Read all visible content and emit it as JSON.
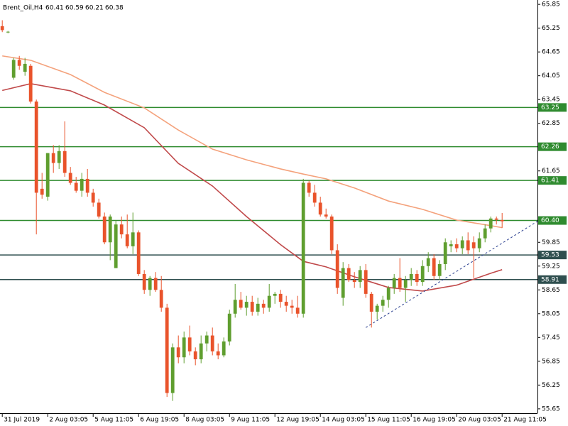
{
  "chart_data": {
    "type": "candlestick",
    "title": "Brent_Oil,H4",
    "header_values": [
      60.41,
      60.59,
      60.21,
      60.38
    ],
    "up_color": "#5f9e2f",
    "down_color": "#e9532b",
    "ohlc": [
      [
        65.3,
        65.45,
        65.15,
        65.2
      ],
      [
        65.15,
        65.18,
        65.12,
        65.16
      ],
      [
        64.0,
        64.5,
        63.95,
        64.45
      ],
      [
        64.45,
        64.55,
        64.2,
        64.3
      ],
      [
        64.15,
        64.5,
        64.05,
        64.35
      ],
      [
        64.3,
        64.35,
        63.35,
        63.4
      ],
      [
        63.4,
        63.45,
        60.05,
        61.1
      ],
      [
        61.2,
        61.6,
        60.95,
        61.05
      ],
      [
        61.0,
        62.1,
        60.9,
        62.1
      ],
      [
        62.1,
        62.3,
        61.6,
        61.85
      ],
      [
        61.85,
        62.3,
        61.7,
        62.15
      ],
      [
        62.15,
        62.9,
        61.5,
        61.6
      ],
      [
        61.6,
        61.75,
        61.3,
        61.35
      ],
      [
        61.35,
        61.5,
        61.1,
        61.15
      ],
      [
        61.15,
        61.6,
        61.0,
        61.45
      ],
      [
        61.45,
        61.7,
        61.0,
        61.1
      ],
      [
        61.1,
        61.2,
        60.75,
        60.85
      ],
      [
        60.85,
        60.95,
        60.45,
        60.5
      ],
      [
        60.5,
        60.6,
        59.8,
        59.85
      ],
      [
        59.85,
        60.55,
        59.4,
        60.5
      ],
      [
        59.2,
        60.4,
        59.2,
        60.3
      ],
      [
        60.3,
        60.5,
        59.95,
        60.05
      ],
      [
        60.05,
        60.55,
        59.7,
        59.75
      ],
      [
        59.75,
        60.6,
        59.55,
        60.1
      ],
      [
        60.1,
        60.15,
        59.0,
        59.05
      ],
      [
        59.05,
        59.15,
        58.55,
        58.65
      ],
      [
        58.65,
        59.0,
        58.5,
        58.95
      ],
      [
        58.95,
        59.1,
        58.6,
        58.65
      ],
      [
        58.65,
        59.0,
        58.1,
        58.2
      ],
      [
        58.2,
        58.3,
        55.95,
        56.05
      ],
      [
        56.05,
        57.3,
        55.85,
        57.2
      ],
      [
        57.2,
        57.5,
        56.8,
        56.95
      ],
      [
        56.95,
        57.6,
        56.8,
        57.45
      ],
      [
        57.45,
        57.75,
        57.0,
        57.1
      ],
      [
        57.1,
        57.2,
        56.75,
        56.9
      ],
      [
        56.9,
        57.5,
        56.8,
        57.3
      ],
      [
        57.3,
        57.6,
        57.1,
        57.5
      ],
      [
        57.5,
        57.7,
        57.0,
        57.1
      ],
      [
        57.1,
        57.3,
        56.9,
        57.0
      ],
      [
        57.0,
        57.45,
        56.95,
        57.35
      ],
      [
        57.35,
        58.15,
        57.25,
        58.05
      ],
      [
        58.05,
        58.8,
        57.95,
        58.4
      ],
      [
        58.4,
        58.6,
        58.15,
        58.2
      ],
      [
        58.2,
        58.5,
        58.0,
        58.35
      ],
      [
        58.35,
        58.5,
        58.0,
        58.1
      ],
      [
        58.1,
        58.45,
        58.0,
        58.3
      ],
      [
        58.3,
        58.4,
        58.05,
        58.2
      ],
      [
        58.2,
        58.8,
        58.1,
        58.5
      ],
      [
        58.5,
        58.6,
        58.3,
        58.55
      ],
      [
        58.55,
        58.65,
        58.2,
        58.35
      ],
      [
        58.35,
        58.5,
        58.1,
        58.25
      ],
      [
        58.25,
        58.4,
        58.05,
        58.2
      ],
      [
        58.2,
        58.5,
        57.95,
        58.05
      ],
      [
        58.05,
        61.45,
        57.95,
        61.35
      ],
      [
        61.35,
        61.4,
        61.0,
        61.1
      ],
      [
        61.1,
        61.3,
        60.75,
        60.85
      ],
      [
        60.85,
        61.0,
        60.5,
        60.55
      ],
      [
        60.55,
        60.7,
        60.45,
        60.5
      ],
      [
        60.5,
        60.55,
        59.55,
        59.65
      ],
      [
        59.65,
        59.8,
        58.55,
        58.7
      ],
      [
        58.45,
        59.35,
        58.25,
        59.2
      ],
      [
        59.2,
        59.3,
        58.85,
        58.9
      ],
      [
        58.9,
        59.1,
        58.7,
        58.85
      ],
      [
        58.85,
        59.25,
        58.7,
        59.15
      ],
      [
        59.15,
        59.3,
        58.45,
        58.55
      ],
      [
        58.55,
        58.6,
        57.7,
        58.1
      ],
      [
        58.1,
        58.3,
        57.9,
        58.25
      ],
      [
        58.25,
        58.5,
        58.1,
        58.4
      ],
      [
        58.4,
        58.75,
        58.2,
        58.7
      ],
      [
        58.7,
        59.05,
        58.55,
        58.95
      ],
      [
        58.95,
        59.45,
        58.6,
        58.7
      ],
      [
        58.7,
        59.0,
        58.35,
        58.9
      ],
      [
        58.9,
        59.2,
        58.75,
        59.05
      ],
      [
        59.05,
        59.15,
        58.75,
        58.85
      ],
      [
        58.85,
        59.4,
        58.75,
        59.25
      ],
      [
        59.25,
        59.6,
        59.1,
        59.45
      ],
      [
        59.45,
        59.55,
        58.9,
        59.0
      ],
      [
        59.0,
        59.4,
        58.9,
        59.3
      ],
      [
        59.3,
        59.95,
        59.15,
        59.85
      ],
      [
        59.75,
        59.9,
        59.6,
        59.8
      ],
      [
        59.8,
        59.95,
        59.6,
        59.7
      ],
      [
        59.7,
        60.0,
        59.55,
        59.9
      ],
      [
        59.9,
        60.1,
        59.55,
        59.65
      ],
      [
        59.85,
        60.0,
        58.95,
        59.7
      ],
      [
        59.7,
        60.1,
        59.6,
        59.95
      ],
      [
        59.95,
        60.3,
        59.85,
        60.2
      ],
      [
        60.2,
        60.5,
        60.1,
        60.45
      ],
      [
        60.45,
        60.5,
        60.3,
        60.42
      ],
      [
        60.41,
        60.59,
        60.21,
        60.38
      ]
    ],
    "ma_lines": [
      {
        "color": "#f4a27c",
        "x": [
          0,
          5,
          12,
          18,
          25,
          31,
          37,
          43,
          49,
          53,
          57,
          62,
          68,
          74,
          80,
          86,
          88
        ],
        "values": [
          64.55,
          64.44,
          64.08,
          63.63,
          63.24,
          62.68,
          62.2,
          61.93,
          61.7,
          61.57,
          61.45,
          61.22,
          60.89,
          60.68,
          60.41,
          60.27,
          60.22
        ]
      },
      {
        "color": "#c0494a",
        "x": [
          0,
          5,
          12,
          18,
          25,
          31,
          37,
          43,
          49,
          53,
          57,
          62,
          68,
          74,
          80,
          86,
          88
        ],
        "values": [
          63.68,
          63.85,
          63.67,
          63.31,
          62.74,
          61.84,
          61.27,
          60.5,
          59.79,
          59.37,
          59.23,
          58.98,
          58.71,
          58.62,
          58.77,
          59.07,
          59.16
        ]
      }
    ],
    "trendline": {
      "color": "#2a3f8f",
      "x": [
        64,
        94.225
      ],
      "values": [
        57.7,
        60.38
      ]
    },
    "levels": [
      {
        "value": 63.25,
        "color": "#2f8b2f"
      },
      {
        "value": 62.26,
        "color": "#2f8b2f"
      },
      {
        "value": 61.41,
        "color": "#2f8b2f"
      },
      {
        "value": 60.4,
        "label": "60.40",
        "color": "#2f8b2f"
      },
      {
        "value": 59.53,
        "color": "#2f4f4f"
      },
      {
        "value": 58.91,
        "color": "#2f4f4f"
      }
    ],
    "xlim": [
      -0.4,
      94.225
    ],
    "ylim": [
      55.54,
      65.96
    ],
    "yticks": [
      65.85,
      65.25,
      64.65,
      64.05,
      63.45,
      62.85,
      61.65,
      59.85,
      59.25,
      58.65,
      58.05,
      57.45,
      56.85,
      56.25,
      55.65
    ],
    "xticks": [
      {
        "value": 0,
        "label": "31 Jul 2019"
      },
      {
        "value": 8,
        "label": "2 Aug 03:05"
      },
      {
        "value": 16,
        "label": "5 Aug 11:05"
      },
      {
        "value": 24,
        "label": "6 Aug 19:05"
      },
      {
        "value": 32,
        "label": "8 Aug 03:05"
      },
      {
        "value": 40,
        "label": "9 Aug 11:05"
      },
      {
        "value": 48,
        "label": "12 Aug 19:05"
      },
      {
        "value": 56,
        "label": "14 Aug 03:05"
      },
      {
        "value": 64,
        "label": "15 Aug 11:05"
      },
      {
        "value": 72,
        "label": "16 Aug 19:05"
      },
      {
        "value": 80,
        "label": "20 Aug 03:05"
      },
      {
        "value": 88,
        "label": "21 Aug 11:05"
      }
    ]
  }
}
